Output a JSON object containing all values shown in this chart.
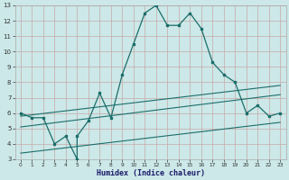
{
  "xlabel": "Humidex (Indice chaleur)",
  "ylabel": "",
  "bg_color": "#cce8e8",
  "line_color": "#1a6e6a",
  "xlim": [
    -0.5,
    23.5
  ],
  "ylim": [
    3,
    13
  ],
  "xticks": [
    0,
    1,
    2,
    3,
    4,
    5,
    6,
    7,
    8,
    9,
    10,
    11,
    12,
    13,
    14,
    15,
    16,
    17,
    18,
    19,
    20,
    21,
    22,
    23
  ],
  "yticks": [
    3,
    4,
    5,
    6,
    7,
    8,
    9,
    10,
    11,
    12,
    13
  ],
  "main_x": [
    0,
    1,
    2,
    3,
    4,
    5,
    5,
    6,
    7,
    8,
    9,
    10,
    11,
    12,
    13,
    14,
    15,
    16,
    17,
    18,
    19,
    20,
    21,
    22,
    23
  ],
  "main_y": [
    6.0,
    5.7,
    5.7,
    4.0,
    4.5,
    3.0,
    4.5,
    5.5,
    7.3,
    5.7,
    8.5,
    10.5,
    12.5,
    13.0,
    11.7,
    11.7,
    12.5,
    11.5,
    9.3,
    8.5,
    8.0,
    6.0,
    6.5,
    5.8,
    6.0
  ],
  "line2_x": [
    0,
    23
  ],
  "line2_y": [
    5.8,
    7.8
  ],
  "line3_x": [
    0,
    23
  ],
  "line3_y": [
    5.1,
    7.2
  ],
  "line4_x": [
    0,
    23
  ],
  "line4_y": [
    3.4,
    5.4
  ],
  "grid_color": "#b8d8d8",
  "spine_color": "#aaaaaa"
}
